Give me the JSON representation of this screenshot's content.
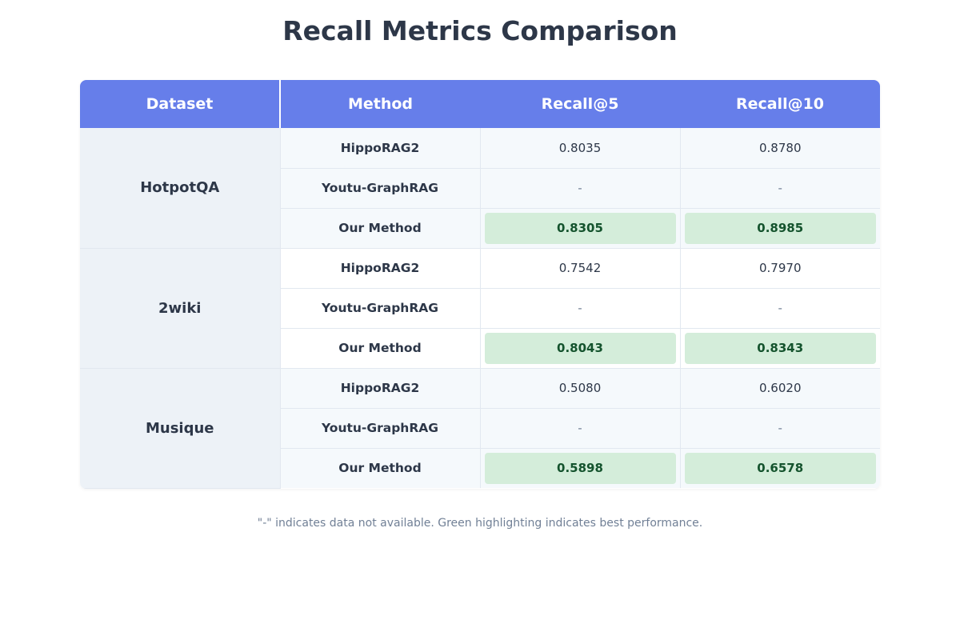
{
  "title": "Recall Metrics Comparison",
  "footnote": "\"-\" indicates data not available. Green highlighting indicates best performance.",
  "colors": {
    "header": "#667eea",
    "highlight": "#d4edda",
    "highlight_text": "#14532d",
    "dataset_bg": "#edf2f7"
  },
  "chart_data": {
    "type": "table",
    "columns": [
      "Dataset",
      "Method",
      "Recall@5",
      "Recall@10"
    ],
    "groups": [
      {
        "dataset": "HotpotQA",
        "rows": [
          {
            "method": "HippoRAG2",
            "r5": "0.8035",
            "r10": "0.8780",
            "best": false
          },
          {
            "method": "Youtu-GraphRAG",
            "r5": "-",
            "r10": "-",
            "best": false
          },
          {
            "method": "Our Method",
            "r5": "0.8305",
            "r10": "0.8985",
            "best": true
          }
        ]
      },
      {
        "dataset": "2wiki",
        "rows": [
          {
            "method": "HippoRAG2",
            "r5": "0.7542",
            "r10": "0.7970",
            "best": false
          },
          {
            "method": "Youtu-GraphRAG",
            "r5": "-",
            "r10": "-",
            "best": false
          },
          {
            "method": "Our Method",
            "r5": "0.8043",
            "r10": "0.8343",
            "best": true
          }
        ]
      },
      {
        "dataset": "Musique",
        "rows": [
          {
            "method": "HippoRAG2",
            "r5": "0.5080",
            "r10": "0.6020",
            "best": false
          },
          {
            "method": "Youtu-GraphRAG",
            "r5": "-",
            "r10": "-",
            "best": false
          },
          {
            "method": "Our Method",
            "r5": "0.5898",
            "r10": "0.6578",
            "best": true
          }
        ]
      }
    ]
  }
}
